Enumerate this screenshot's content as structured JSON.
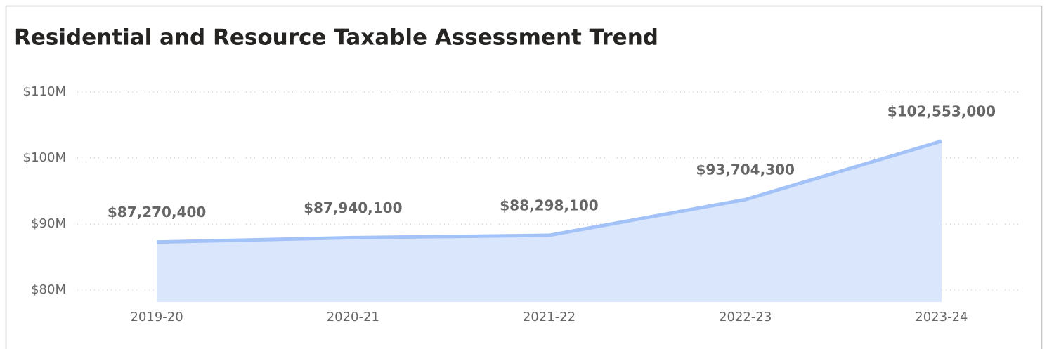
{
  "chart_data": {
    "type": "area",
    "title": "Residential and Resource Taxable Assessment Trend",
    "categories": [
      "2019-20",
      "2020-21",
      "2021-22",
      "2022-23",
      "2023-24"
    ],
    "values": [
      87270400,
      87940100,
      88298100,
      93704300,
      102553000
    ],
    "value_labels": [
      "$87,270,400",
      "$87,940,100",
      "$88,298,100",
      "$93,704,300",
      "$102,553,000"
    ],
    "line_color": "#a3c2f7",
    "fill_color": "#dae6fc",
    "ylim": [
      78200000,
      110000000
    ],
    "yticks": [
      {
        "value": 80000000,
        "label": "$80M"
      },
      {
        "value": 90000000,
        "label": "$90M"
      },
      {
        "value": 100000000,
        "label": "$100M"
      },
      {
        "value": 110000000,
        "label": "$110M"
      }
    ],
    "grid": true
  }
}
